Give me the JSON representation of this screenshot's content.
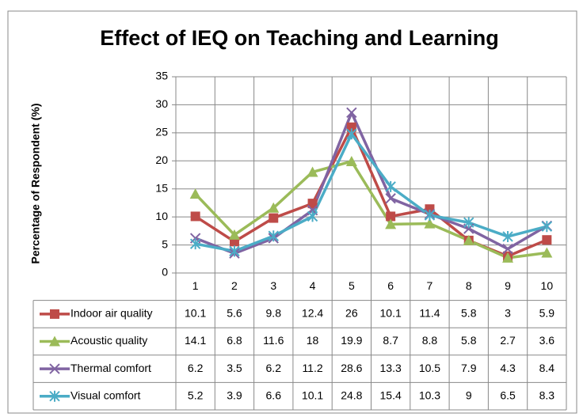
{
  "chart_data": {
    "type": "line",
    "title": "Effect of IEQ on Teaching and Learning",
    "y_label": "Percentage of Respondent (%)",
    "categories": [
      "1",
      "2",
      "3",
      "4",
      "5",
      "6",
      "7",
      "8",
      "9",
      "10"
    ],
    "series": [
      {
        "name": "Indoor air quality",
        "color": "#be4b48",
        "marker": "square",
        "values": [
          10.1,
          5.6,
          9.8,
          12.4,
          26,
          10.1,
          11.4,
          5.8,
          3,
          5.9
        ]
      },
      {
        "name": "Acoustic quality",
        "color": "#9bbb59",
        "marker": "triangle",
        "values": [
          14.1,
          6.8,
          11.6,
          18,
          19.9,
          8.7,
          8.8,
          5.8,
          2.7,
          3.6
        ]
      },
      {
        "name": "Thermal comfort",
        "color": "#8064a2",
        "marker": "x",
        "values": [
          6.2,
          3.5,
          6.2,
          11.2,
          28.6,
          13.3,
          10.5,
          7.9,
          4.3,
          8.4
        ]
      },
      {
        "name": "Visual comfort",
        "color": "#4bacc6",
        "marker": "star",
        "values": [
          5.2,
          3.9,
          6.6,
          10.1,
          24.8,
          15.4,
          10.3,
          9,
          6.5,
          8.3
        ]
      }
    ],
    "ylim": [
      0,
      35
    ],
    "yticks": [
      0,
      5,
      10,
      15,
      20,
      25,
      30,
      35
    ],
    "grid": true,
    "data_table": true
  }
}
